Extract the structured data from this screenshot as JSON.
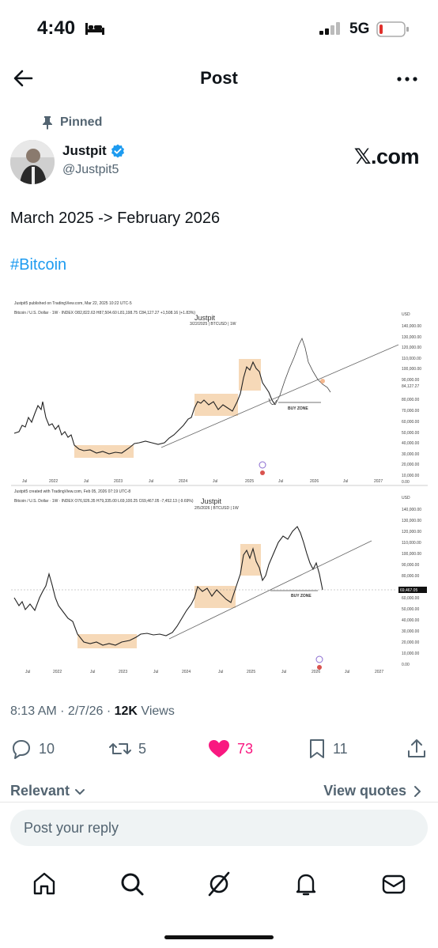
{
  "status": {
    "time": "4:40",
    "network": "5G"
  },
  "header": {
    "title": "Post"
  },
  "pinned": {
    "label": "Pinned"
  },
  "author": {
    "name": "Justpit",
    "handle": "@Justpit5",
    "source_badge": "𝕏.com"
  },
  "tweet": {
    "text": "March 2025 -> February 2026",
    "hashtag": "#Bitcoin"
  },
  "chart_top": {
    "publisher": "Justpit5 published on TradingView.com, Mar 22, 2025 10:22 UTC-5",
    "symbol_line": "Bitcoin / U.S. Dollar · 1W · INDEX  O82,822.63  H87,504.60  L81,198.75  C84,127.27  +1,508.16 (+1.83%)",
    "watermark": "Justpit",
    "watermark_sub": "3/22/2025 | BTCUSD | 1W",
    "currency": "USD",
    "y_ticks": [
      "140,000.00",
      "130,000.00",
      "120,000.00",
      "110,000.00",
      "100,000.00",
      "90,000.00",
      "84,127.27",
      "80,000.00",
      "70,000.00",
      "60,000.00",
      "50,000.00",
      "40,000.00",
      "30,000.00",
      "20,000.00",
      "10,000.00",
      "0.00"
    ],
    "x_ticks": [
      "Jul",
      "2022",
      "Jul",
      "2023",
      "Jul",
      "2024",
      "Jul",
      "2025",
      "Jul",
      "2026",
      "Jul",
      "2027"
    ],
    "buy_zone_label": "BUY ZONE"
  },
  "chart_bottom": {
    "publisher": "Justpit5 created with TradingView.com, Feb 05, 2026 07:19 UTC-8",
    "symbol_line": "Bitcoin / U.S. Dollar · 1W · INDEX  O76,926.35  H79,335.00  L69,100.25  C69,467.05  -7,452.13 (-9.69%)",
    "watermark": "Justpit",
    "watermark_sub": "2/5/2026 | BTCUSD | 1W",
    "currency": "USD",
    "y_ticks": [
      "140,000.00",
      "130,000.00",
      "120,000.00",
      "110,000.00",
      "100,000.00",
      "90,000.00",
      "80,000.00",
      "69,467.05",
      "60,000.00",
      "50,000.00",
      "40,000.00",
      "30,000.00",
      "20,000.00",
      "10,000.00",
      "0.00"
    ],
    "x_ticks": [
      "Jul",
      "2022",
      "Jul",
      "2023",
      "Jul",
      "2024",
      "Jul",
      "2025",
      "Jul",
      "2026",
      "Jul",
      "2027"
    ],
    "buy_zone_label": "BUY ZONE"
  },
  "meta": {
    "time": "8:13 AM · 2/7/26 · ",
    "views_count": "12K",
    "views_label": " Views"
  },
  "actions": {
    "replies": "10",
    "reposts": "5",
    "likes": "73",
    "bookmarks": "11"
  },
  "sort": {
    "label": "Relevant",
    "quotes": "View quotes"
  },
  "reply": {
    "placeholder": "Post your reply"
  },
  "colors": {
    "like": "#f91880",
    "link": "#1d9bf0",
    "muted": "#536471",
    "zone": "#f6d9b8"
  }
}
